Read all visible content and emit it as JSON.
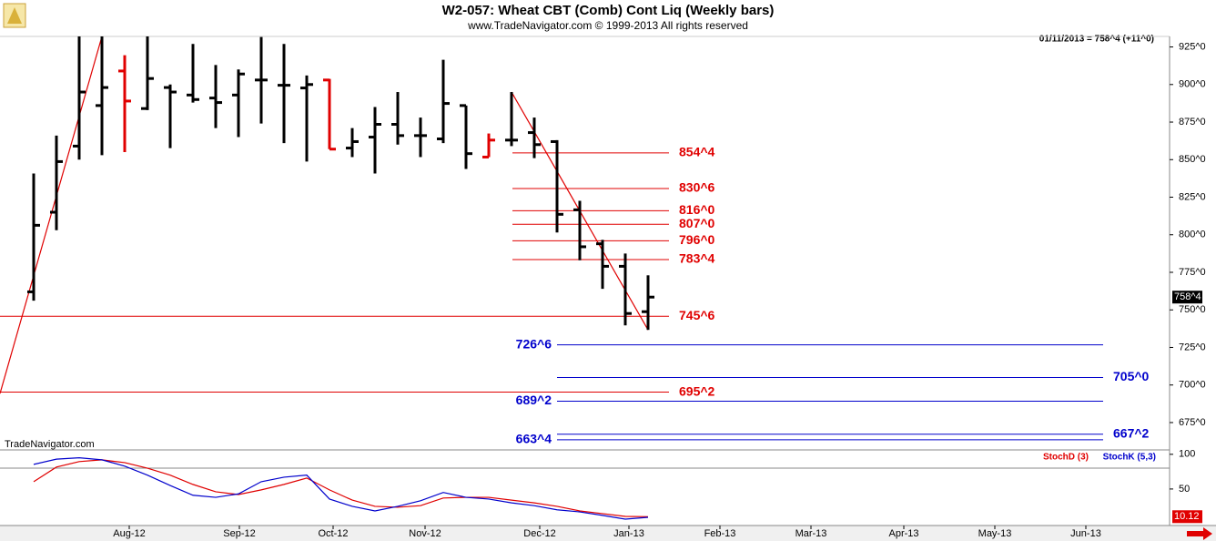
{
  "chart_data": [
    {
      "type": "ohlc",
      "title": "W2-057:  Wheat CBT (Comb) Cont Liq  (Weekly bars)",
      "subtitle": "www.TradeNavigator.com © 1999-2013 All rights reserved",
      "annotation": "01/11/2013 = 758^4 (+11^0)",
      "watermark": "TradeNavigator.com",
      "last_label": "758^4",
      "x": [
        0,
        1,
        2,
        3,
        4,
        5,
        6,
        7,
        8,
        9,
        10,
        11,
        12,
        13,
        14,
        15,
        16,
        17,
        18,
        19,
        20,
        21,
        22,
        23,
        24,
        25,
        26,
        27
      ],
      "open": [
        762,
        815,
        859,
        886,
        909,
        884,
        898,
        893,
        891,
        893,
        903,
        899.5,
        897.7,
        903,
        857.7,
        865,
        873.5,
        866,
        863.8,
        886,
        851.7,
        863,
        868,
        862,
        816.6,
        794,
        779,
        748.8
      ],
      "high": [
        840.8,
        866,
        935,
        935,
        919.5,
        935,
        900,
        927,
        913,
        910,
        931.6,
        927,
        906,
        903.7,
        871,
        885,
        895,
        878,
        916.5,
        886,
        867.4,
        895,
        878,
        863,
        822.6,
        796.6,
        787.5,
        773
      ],
      "low": [
        756.1,
        803,
        850,
        853,
        855,
        883,
        857.7,
        888,
        871,
        865,
        874,
        861,
        848.7,
        857,
        851.7,
        840.8,
        860,
        851.7,
        861,
        843.8,
        851.7,
        859,
        851,
        801.5,
        783,
        764,
        739.7,
        736.7
      ],
      "close": [
        806.3,
        848.7,
        895,
        898,
        889,
        904,
        895,
        890,
        888,
        907,
        903,
        899.5,
        900,
        857,
        862,
        873.5,
        866,
        866,
        887.4,
        854,
        863,
        863,
        860,
        813.6,
        792,
        779,
        747.6,
        758.5
      ],
      "colors": [
        "#000",
        "#000",
        "#000",
        "#000",
        "#e00000",
        "#000",
        "#000",
        "#000",
        "#000",
        "#000",
        "#000",
        "#000",
        "#000",
        "#e00000",
        "#000",
        "#000",
        "#000",
        "#000",
        "#000",
        "#000",
        "#e00000",
        "#000",
        "#000",
        "#000",
        "#000",
        "#000",
        "#000",
        "#000"
      ],
      "xlim": [
        -1.48,
        49.92
      ],
      "xticks": [
        {
          "value": 4.2,
          "label": "Aug-12"
        },
        {
          "value": 9.04,
          "label": "Sep-12"
        },
        {
          "value": 13.16,
          "label": "Oct-12"
        },
        {
          "value": 17.2,
          "label": "Nov-12"
        },
        {
          "value": 22.24,
          "label": "Dec-12"
        },
        {
          "value": 26.16,
          "label": "Jan-13"
        },
        {
          "value": 30.16,
          "label": "Feb-13"
        },
        {
          "value": 34.16,
          "label": "Mar-13"
        },
        {
          "value": 38.24,
          "label": "Apr-13"
        },
        {
          "value": 42.24,
          "label": "May-13"
        },
        {
          "value": 46.24,
          "label": "Jun-13"
        }
      ],
      "ylim": [
        658,
        932
      ],
      "yticks": [
        {
          "value": 675,
          "label": "675^0"
        },
        {
          "value": 700,
          "label": "700^0"
        },
        {
          "value": 725,
          "label": "725^0"
        },
        {
          "value": 750,
          "label": "750^0"
        },
        {
          "value": 775,
          "label": "775^0"
        },
        {
          "value": 800,
          "label": "800^0"
        },
        {
          "value": 825,
          "label": "825^0"
        },
        {
          "value": 850,
          "label": "850^0"
        },
        {
          "value": 875,
          "label": "875^0"
        },
        {
          "value": 900,
          "label": "900^0"
        },
        {
          "value": 925,
          "label": "925^0"
        }
      ],
      "levels": [
        {
          "value": 854.5,
          "label": "854^4",
          "color": "#e00000",
          "x": [
            21.04,
            27.92
          ],
          "label_side": "right"
        },
        {
          "value": 830.75,
          "label": "830^6",
          "color": "#e00000",
          "x": [
            21.04,
            27.92
          ],
          "label_side": "right"
        },
        {
          "value": 816,
          "label": "816^0",
          "color": "#e00000",
          "x": [
            21.04,
            27.92
          ],
          "label_side": "right"
        },
        {
          "value": 807,
          "label": "807^0",
          "color": "#e00000",
          "x": [
            21.04,
            27.92
          ],
          "label_side": "right"
        },
        {
          "value": 796,
          "label": "796^0",
          "color": "#e00000",
          "x": [
            21.04,
            27.92
          ],
          "label_side": "right"
        },
        {
          "value": 783.5,
          "label": "783^4",
          "color": "#e00000",
          "x": [
            21.04,
            27.92
          ],
          "label_side": "right"
        },
        {
          "value": 745.75,
          "label": "745^6",
          "color": "#e00000",
          "x": [
            -1.48,
            27.92
          ],
          "label_side": "right"
        },
        {
          "value": 695.25,
          "label": "695^2",
          "color": "#e00000",
          "x": [
            -1.48,
            27.92
          ],
          "label_side": "right"
        },
        {
          "value": 726.75,
          "label": "726^6",
          "color": "#0000cc",
          "x": [
            23,
            47
          ],
          "label_side": "left"
        },
        {
          "value": 705,
          "label": "705^0",
          "color": "#0000cc",
          "x": [
            23,
            47
          ],
          "label_side": "right"
        },
        {
          "value": 689.25,
          "label": "689^2",
          "color": "#0000cc",
          "x": [
            23,
            47
          ],
          "label_side": "left"
        },
        {
          "value": 667.25,
          "label": "667^2",
          "color": "#0000cc",
          "x": [
            23,
            47
          ],
          "label_side": "right"
        },
        {
          "value": 663.5,
          "label": "663^4",
          "color": "#0000cc",
          "x": [
            23,
            47
          ],
          "label_side": "left"
        }
      ],
      "trendlines": [
        {
          "x": [
            -1.48,
            3
          ],
          "y": [
            694.3,
            932
          ],
          "color": "#e00000"
        },
        {
          "x": [
            21,
            27
          ],
          "y": [
            895,
            736.7
          ],
          "color": "#e00000"
        }
      ]
    },
    {
      "type": "line",
      "x": [
        0,
        1,
        2,
        3,
        4,
        5,
        6,
        7,
        8,
        9,
        10,
        11,
        12,
        13,
        14,
        15,
        16,
        17,
        18,
        19,
        20,
        21,
        22,
        23,
        24,
        25,
        26,
        27
      ],
      "series": [
        {
          "name": "StochD (3)",
          "color": "#e00000",
          "values": [
            60.5,
            81.6,
            89.5,
            92,
            88,
            80,
            70,
            56.6,
            46,
            42,
            48.7,
            56.6,
            65.8,
            48.7,
            34,
            25,
            23.7,
            26,
            37,
            38,
            38,
            34,
            30,
            25,
            18.4,
            14.5,
            10.5,
            10.12
          ]
        },
        {
          "name": "StochK (5,3)",
          "color": "#0000cc",
          "values": [
            85.5,
            93,
            95,
            92,
            83,
            70,
            55,
            41,
            38,
            43,
            60.5,
            67,
            70,
            35.5,
            25,
            18.4,
            25,
            33,
            45,
            38,
            35.5,
            30,
            26,
            20,
            17,
            12,
            6.6,
            9.2
          ]
        }
      ],
      "ylim": [
        0,
        105
      ],
      "yticks": [
        50,
        100
      ],
      "hlines": [
        80
      ]
    }
  ]
}
